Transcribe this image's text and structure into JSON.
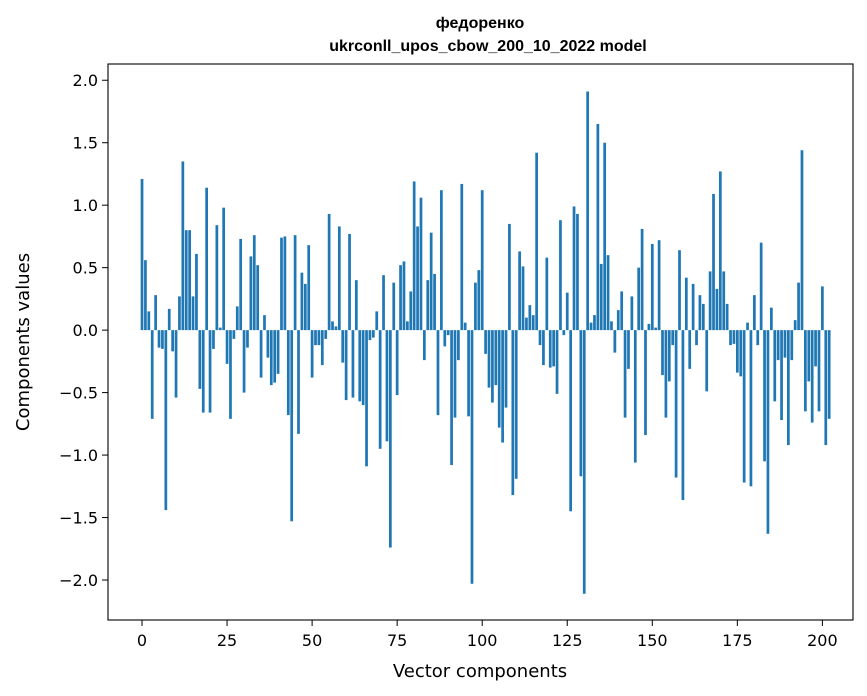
{
  "chart_data": {
    "type": "bar",
    "title_line1": "федоренко",
    "title_line2": "ukrconll_upos_cbow_200_10_2022 model",
    "xlabel": "Vector components",
    "ylabel": "Components values",
    "xlim": [
      -10,
      209
    ],
    "ylim": [
      -2.32,
      2.13
    ],
    "xticks": [
      0,
      25,
      50,
      75,
      100,
      125,
      150,
      175,
      200
    ],
    "yticks": [
      -2.0,
      -1.5,
      -1.0,
      -0.5,
      0.0,
      0.5,
      1.0,
      1.5,
      2.0
    ],
    "ytick_labels": [
      "−2.0",
      "−1.5",
      "−1.0",
      "−0.5",
      "0.0",
      "0.5",
      "1.0",
      "1.5",
      "2.0"
    ],
    "bar_color": "#1f77b4",
    "values": [
      1.21,
      0.56,
      0.15,
      -0.71,
      0.28,
      -0.14,
      -0.15,
      -1.44,
      0.17,
      -0.17,
      -0.54,
      0.27,
      1.35,
      0.8,
      0.8,
      0.27,
      0.61,
      -0.47,
      -0.66,
      1.14,
      -0.66,
      -0.15,
      0.84,
      0.02,
      0.98,
      -0.27,
      -0.71,
      -0.07,
      0.19,
      0.73,
      -0.5,
      -0.14,
      0.59,
      0.76,
      0.52,
      -0.38,
      0.12,
      -0.22,
      -0.44,
      -0.42,
      -0.35,
      0.74,
      0.75,
      -0.68,
      -1.53,
      0.76,
      -0.83,
      0.46,
      0.37,
      0.68,
      -0.38,
      -0.12,
      -0.12,
      -0.28,
      -0.07,
      0.93,
      0.07,
      0.03,
      0.83,
      -0.26,
      -0.56,
      0.77,
      -0.54,
      0.4,
      -0.57,
      -0.6,
      -1.09,
      -0.08,
      -0.06,
      0.15,
      -0.95,
      0.44,
      -0.89,
      -1.74,
      0.38,
      -0.52,
      0.52,
      0.55,
      0.07,
      0.31,
      1.19,
      0.83,
      1.06,
      -0.24,
      0.4,
      0.78,
      0.45,
      -0.68,
      1.12,
      -0.13,
      -0.04,
      -1.08,
      -0.7,
      -0.24,
      1.17,
      0.06,
      -0.69,
      -2.03,
      0.38,
      0.48,
      1.12,
      -0.19,
      -0.46,
      -0.58,
      -0.44,
      -0.78,
      -0.9,
      -0.62,
      0.85,
      -1.32,
      -1.19,
      0.63,
      0.51,
      0.1,
      0.2,
      0.12,
      1.42,
      -0.12,
      -0.28,
      0.58,
      -0.3,
      -0.29,
      -0.51,
      0.88,
      -0.04,
      0.3,
      -1.45,
      0.99,
      0.93,
      -1.17,
      -2.11,
      1.91,
      0.06,
      0.12,
      1.65,
      0.53,
      1.5,
      0.6,
      0.07,
      -0.18,
      0.16,
      0.31,
      -0.7,
      -0.31,
      0.27,
      -1.06,
      0.5,
      0.81,
      -0.84,
      0.05,
      0.69,
      0.02,
      0.72,
      -0.36,
      -0.7,
      -0.41,
      -0.12,
      -1.18,
      0.64,
      -1.36,
      0.42,
      -0.31,
      0.37,
      -0.12,
      0.28,
      0.21,
      -0.49,
      0.47,
      1.09,
      0.33,
      1.27,
      0.47,
      0.21,
      -0.12,
      -0.11,
      -0.34,
      -0.37,
      -1.22,
      0.06,
      -1.25,
      0.28,
      -0.12,
      0.7,
      -1.05,
      -1.63,
      0.18,
      -0.57,
      -0.24,
      -0.72,
      -0.22,
      -0.92,
      -0.24,
      0.08,
      0.38,
      1.44,
      -0.65,
      -0.41,
      -0.74,
      -0.29,
      -0.65,
      0.35,
      -0.92,
      -0.71
    ]
  }
}
